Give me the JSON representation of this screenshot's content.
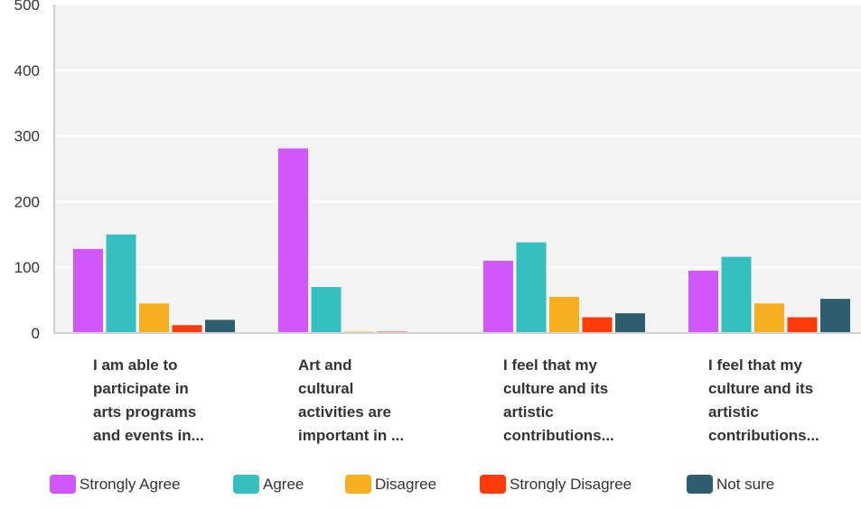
{
  "chart_data": {
    "type": "bar",
    "categories": [
      [
        "I am able to",
        "participate in",
        "arts programs",
        "and events in..."
      ],
      [
        "Art and",
        "cultural",
        "activities are",
        "important in ..."
      ],
      [
        "I feel that my",
        "culture and its",
        "artistic",
        "contributions..."
      ],
      [
        "I feel that my",
        "culture and its",
        "artistic",
        "contributions..."
      ]
    ],
    "series": [
      {
        "name": "Strongly Agree",
        "color": "#D257FB",
        "values": [
          128,
          281,
          110,
          95
        ]
      },
      {
        "name": "Agree",
        "color": "#35BFC1",
        "values": [
          150,
          70,
          138,
          116
        ]
      },
      {
        "name": "Disagree",
        "color": "#F7AF1F",
        "values": [
          45,
          2,
          55,
          45
        ]
      },
      {
        "name": "Strongly Disagree",
        "color": "#FF3B0A",
        "values": [
          12,
          2,
          24,
          24
        ]
      },
      {
        "name": "Not sure",
        "color": "#2E5E6D",
        "values": [
          20,
          0,
          30,
          52
        ]
      }
    ],
    "yticks": [
      "0",
      "100",
      "200",
      "300",
      "400",
      "500"
    ],
    "ylim": [
      0,
      500
    ],
    "grid": true,
    "legend_position": "bottom"
  }
}
